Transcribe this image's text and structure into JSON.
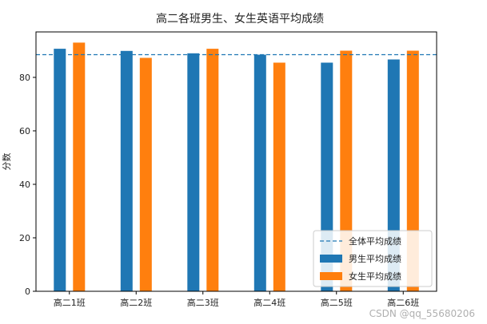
{
  "chart_data": {
    "type": "bar",
    "title": "高二各班男生、女生英语平均成绩",
    "xlabel": "",
    "ylabel": "分数",
    "ylim": [
      0,
      97
    ],
    "yticks": [
      0,
      20,
      40,
      60,
      80
    ],
    "grid": false,
    "legend_position": "lower-right",
    "categories": [
      "高二1班",
      "高二2班",
      "高二3班",
      "高二4班",
      "高二5班",
      "高二6班"
    ],
    "series": [
      {
        "name": "男生平均成绩",
        "color": "#1f77b4",
        "values": [
          90.7,
          89.9,
          89.0,
          88.5,
          85.5,
          86.7
        ]
      },
      {
        "name": "女生平均成绩",
        "color": "#ff7f0e",
        "values": [
          93.0,
          87.3,
          90.7,
          85.5,
          90.0,
          90.0
        ]
      }
    ],
    "reference_line": {
      "name": "全体平均成绩",
      "value": 88.5,
      "color": "#1f77b4",
      "style": "dashed"
    }
  },
  "watermark": "CSDN @qq_55680206"
}
